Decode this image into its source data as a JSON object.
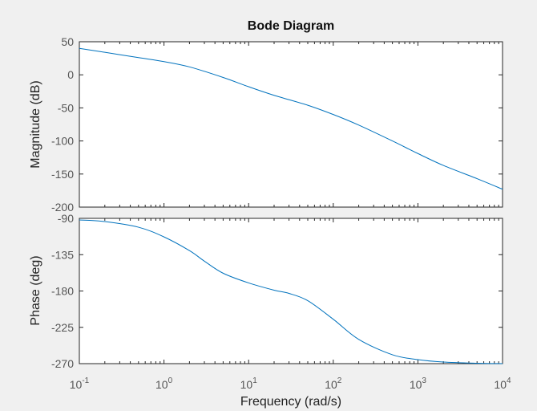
{
  "chart_data": {
    "type": "line",
    "title": "Bode Diagram",
    "xlabel": "Frequency  (rad/s)",
    "xscale": "log",
    "xlim": [
      0.1,
      10000
    ],
    "xticks": [
      {
        "base": "10",
        "exp": "-1",
        "value": 0.1
      },
      {
        "base": "10",
        "exp": "0",
        "value": 1
      },
      {
        "base": "10",
        "exp": "1",
        "value": 10
      },
      {
        "base": "10",
        "exp": "2",
        "value": 100
      },
      {
        "base": "10",
        "exp": "3",
        "value": 1000
      },
      {
        "base": "10",
        "exp": "4",
        "value": 10000
      }
    ],
    "line_color": "#0072bd",
    "background": "#f0f0f0",
    "plot_background": "#ffffff",
    "grid": false,
    "panels": [
      {
        "id": "magnitude",
        "ylabel": "Magnitude (dB)",
        "ylim": [
          -200,
          50
        ],
        "yticks": [
          "50",
          "0",
          "-50",
          "-100",
          "-150",
          "-200"
        ],
        "ytick_values": [
          50,
          0,
          -50,
          -100,
          -150,
          -200
        ],
        "x": [
          0.1,
          0.2,
          0.5,
          1,
          2,
          5,
          10,
          20,
          50,
          100,
          200,
          500,
          1000,
          2000,
          5000,
          10000
        ],
        "y": [
          40,
          34,
          26,
          20,
          12,
          -4,
          -18,
          -31,
          -46,
          -60,
          -76,
          -100,
          -119,
          -137,
          -157,
          -173
        ]
      },
      {
        "id": "phase",
        "ylabel": "Phase (deg)",
        "ylim": [
          -270,
          -90
        ],
        "yticks": [
          "-90",
          "-135",
          "-180",
          "-225",
          "-270"
        ],
        "ytick_values": [
          -90,
          -135,
          -180,
          -225,
          -270
        ],
        "x": [
          0.1,
          0.2,
          0.5,
          1,
          2,
          3,
          5,
          10,
          20,
          30,
          50,
          100,
          200,
          500,
          1000,
          2000,
          5000,
          10000
        ],
        "y": [
          -92,
          -94,
          -101,
          -113,
          -130,
          -143,
          -158,
          -170,
          -179,
          -183,
          -192,
          -215,
          -240,
          -259,
          -265,
          -268,
          -269.5,
          -270
        ]
      }
    ]
  }
}
